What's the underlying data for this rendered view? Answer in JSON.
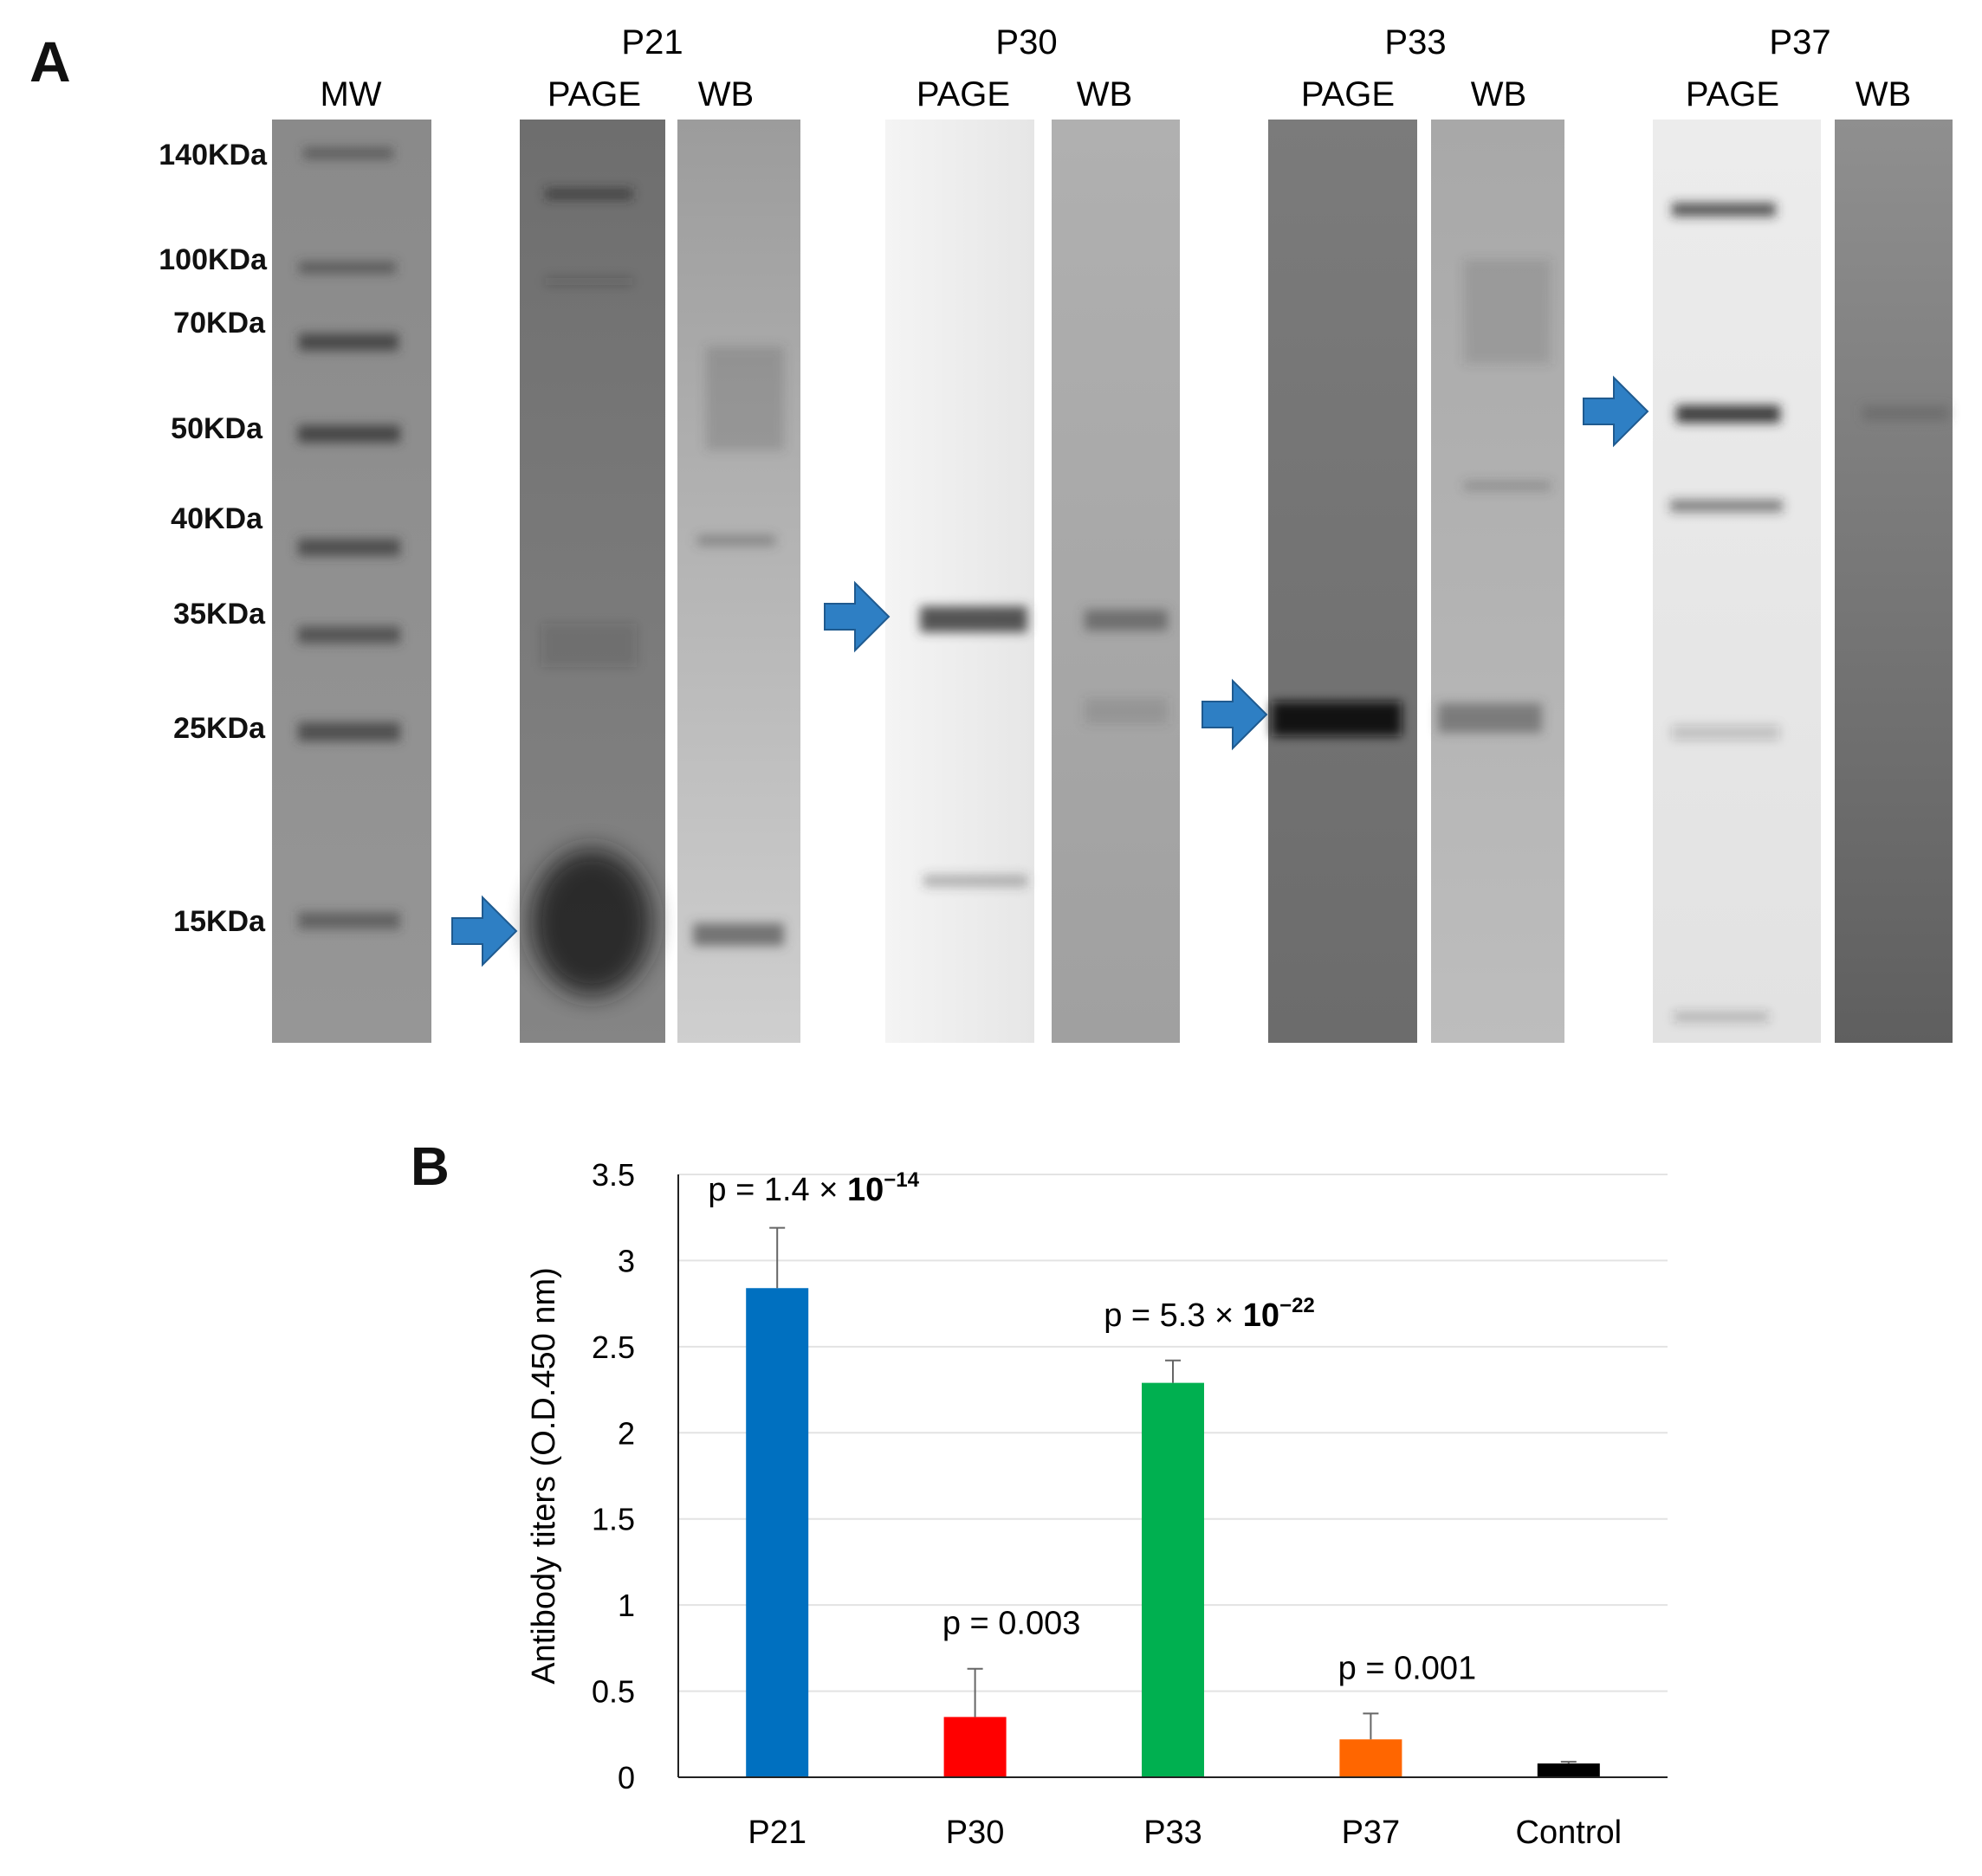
{
  "panel_a": {
    "label": "A",
    "mw": {
      "title": "MW",
      "markers": [
        "140KDa",
        "100KDa",
        "70KDa",
        "50KDa",
        "40KDa",
        "35KDa",
        "25KDa",
        "15KDa"
      ]
    },
    "groups": [
      {
        "name": "P21",
        "lanes": [
          "PAGE",
          "WB"
        ]
      },
      {
        "name": "P30",
        "lanes": [
          "PAGE",
          "WB"
        ]
      },
      {
        "name": "P33",
        "lanes": [
          "PAGE",
          "WB"
        ]
      },
      {
        "name": "P37",
        "lanes": [
          "PAGE",
          "WB"
        ]
      }
    ],
    "arrow_color": "#2e7fc4"
  },
  "panel_b": {
    "label": "B",
    "chart_data": {
      "type": "bar",
      "categories": [
        "P21",
        "P30",
        "P33",
        "P37",
        "Control"
      ],
      "values": [
        2.84,
        0.35,
        2.29,
        0.22,
        0.08
      ],
      "errors": [
        0.35,
        0.28,
        0.13,
        0.15,
        0.01
      ],
      "colors": [
        "#0070c0",
        "#ff0000",
        "#00b050",
        "#ff6600",
        "#000000"
      ],
      "annotations": [
        {
          "category": "P21",
          "prefix": "p = 1.4 × ",
          "base": "10",
          "exponent": "−14"
        },
        {
          "category": "P30",
          "prefix": "p = 0.003",
          "base": "",
          "exponent": ""
        },
        {
          "category": "P33",
          "prefix": "p = 5.3 × ",
          "base": "10",
          "exponent": "−22"
        },
        {
          "category": "P37",
          "prefix": "p = 0.001",
          "base": "",
          "exponent": ""
        }
      ],
      "ylabel": "Antibody titers (O.D.450 nm)",
      "ylim": [
        0,
        3.5
      ],
      "yticks": [
        "0",
        "0.5",
        "1",
        "1.5",
        "2",
        "2.5",
        "3",
        "3.5"
      ],
      "grid": true
    }
  }
}
